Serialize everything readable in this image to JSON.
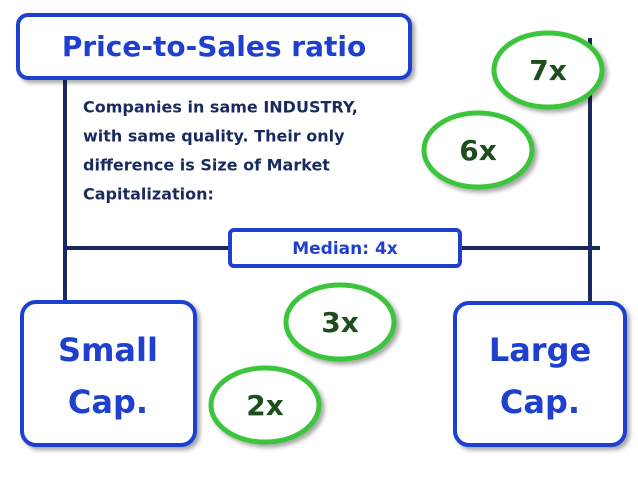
{
  "title": "Price-to-Sales ratio",
  "description": [
    "Companies in same INDUSTRY,",
    "with same quality. Their only",
    "difference is Size of Market",
    "Capitalization:"
  ],
  "median": "Median: 4x",
  "ratios": [
    "7x",
    "6x",
    "3x",
    "2x"
  ],
  "boxes": [
    [
      "Small",
      "Cap."
    ],
    [
      "Large",
      "Cap."
    ]
  ]
}
